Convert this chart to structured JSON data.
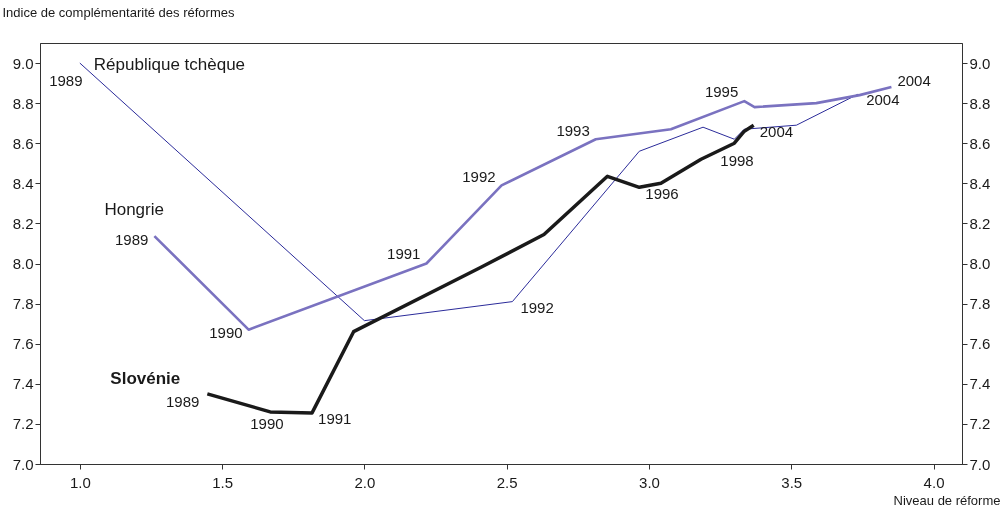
{
  "chart_data": {
    "type": "line",
    "ylabel": "Indice de complémentarité des réformes",
    "xlabel": "Niveau de réforme",
    "xlim": [
      0.86,
      4.1
    ],
    "xticks": [
      {
        "value": 1,
        "label": "1.0"
      },
      1.5,
      {
        "value": 2,
        "label": "2.0"
      },
      2.5,
      {
        "value": 3,
        "label": "3.0"
      },
      3.5,
      {
        "value": 4,
        "label": "4.0"
      }
    ],
    "ylim": [
      7.0,
      9.1
    ],
    "yticks": [
      {
        "value": 7,
        "label": "7.0"
      },
      7.2,
      7.4,
      7.6,
      7.8,
      {
        "value": 8,
        "label": "8.0"
      },
      8.2,
      8.4,
      8.6,
      8.8,
      {
        "value": 9,
        "label": "9.0"
      }
    ],
    "y2lim": [
      7.0,
      9.1
    ],
    "y2ticks": [
      {
        "value": 7,
        "label": "7.0"
      },
      7.2,
      7.4,
      7.6,
      7.8,
      {
        "value": 8,
        "label": "8.0"
      },
      8.2,
      8.4,
      8.6,
      8.8,
      {
        "value": 9,
        "label": "9.0"
      }
    ],
    "grid": false,
    "series": [
      {
        "name": "République tchèque",
        "color": "#2b2b9a",
        "x": [
          1.0,
          2.0,
          2.52,
          2.966,
          3.19,
          3.3,
          3.335,
          3.518,
          3.735
        ],
        "values": [
          9.0,
          7.715,
          7.81,
          8.56,
          8.68,
          8.62,
          8.67,
          8.69,
          8.845
        ]
      },
      {
        "name": "Hongrie",
        "color": "#7a72c0",
        "x": [
          1.262,
          1.593,
          2.218,
          2.482,
          2.813,
          3.077,
          3.335,
          3.371,
          3.588,
          3.74,
          3.852
        ],
        "values": [
          8.137,
          7.67,
          8.0,
          8.39,
          8.62,
          8.67,
          8.81,
          8.78,
          8.8,
          8.84,
          8.88
        ]
      },
      {
        "name": "Slovénie",
        "color": "#1a1a1a",
        "x": [
          1.448,
          1.669,
          1.816,
          1.962,
          2.408,
          2.631,
          2.854,
          2.966,
          3.042,
          3.183,
          3.3,
          3.335,
          3.368
        ],
        "values": [
          7.35,
          7.26,
          7.255,
          7.66,
          7.98,
          8.145,
          8.435,
          8.38,
          8.4,
          8.52,
          8.6,
          8.66,
          8.69
        ]
      }
    ],
    "annotations": [
      {
        "text": "1989",
        "x": 1.0,
        "y": 9.0
      },
      {
        "text": "1989",
        "x": 1.262,
        "y": 8.137
      },
      {
        "text": "1990",
        "x": 1.593,
        "y": 7.67
      },
      {
        "text": "1991",
        "x": 2.218,
        "y": 8.0
      },
      {
        "text": "1992",
        "x": 2.482,
        "y": 8.39
      },
      {
        "text": "1993",
        "x": 2.813,
        "y": 8.62
      },
      {
        "text": "1995",
        "x": 3.335,
        "y": 8.81
      },
      {
        "text": "2004",
        "x": 3.852,
        "y": 8.88
      },
      {
        "text": "1992",
        "x": 2.52,
        "y": 7.81
      },
      {
        "text": "2004",
        "x": 3.735,
        "y": 8.845
      },
      {
        "text": "1989",
        "x": 1.448,
        "y": 7.35
      },
      {
        "text": "1990",
        "x": 1.669,
        "y": 7.26
      },
      {
        "text": "1991",
        "x": 1.816,
        "y": 7.255
      },
      {
        "text": "1996",
        "x": 2.966,
        "y": 8.38
      },
      {
        "text": "1998",
        "x": 3.3,
        "y": 8.6
      },
      {
        "text": "2004",
        "x": 3.368,
        "y": 8.69
      }
    ]
  }
}
